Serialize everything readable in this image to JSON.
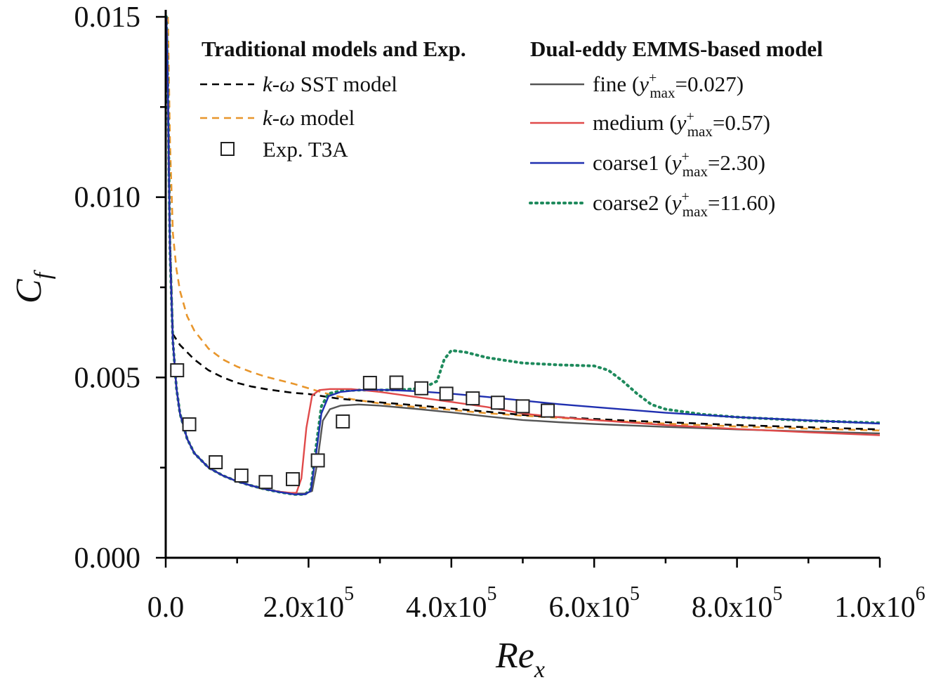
{
  "chart_data": {
    "type": "line",
    "xlabel": "Re",
    "xlabel_sub": "x",
    "ylabel": "C",
    "ylabel_sub": "f",
    "xlim": [
      0,
      1000000
    ],
    "ylim": [
      0,
      0.015
    ],
    "x_ticks": [
      0,
      200000,
      400000,
      600000,
      800000,
      1000000
    ],
    "x_tick_labels": [
      {
        "base": "0.0",
        "exp": ""
      },
      {
        "base": "2.0x10",
        "exp": "5"
      },
      {
        "base": "4.0x10",
        "exp": "5"
      },
      {
        "base": "6.0x10",
        "exp": "5"
      },
      {
        "base": "8.0x10",
        "exp": "5"
      },
      {
        "base": "1.0x10",
        "exp": "6"
      }
    ],
    "y_ticks": [
      0,
      0.005,
      0.01,
      0.015
    ],
    "y_tick_labels": [
      "0.000",
      "0.005",
      "0.010",
      "0.015"
    ],
    "grid": false,
    "legend_groups": [
      {
        "heading": "Traditional models and Exp.",
        "placement": "top-left"
      },
      {
        "heading": "Dual-eddy EMMS-based model",
        "placement": "top-right"
      }
    ],
    "series": [
      {
        "key": "sst",
        "group": 0,
        "color": "#000000",
        "style": "dashed",
        "legend": {
          "italic": "k-ω",
          "rest": " SST  model"
        },
        "x": [
          2000,
          5000,
          10000,
          20000,
          40000,
          60000,
          80000,
          100000,
          120000,
          140000,
          160000,
          180000,
          200000,
          220000,
          240000,
          260000,
          280000,
          300000,
          350000,
          400000,
          450000,
          500000,
          550000,
          600000,
          650000,
          700000,
          800000,
          900000,
          1000000
        ],
        "y": [
          0.0145,
          0.0095,
          0.0062,
          0.0059,
          0.0055,
          0.0052,
          0.005,
          0.00485,
          0.00475,
          0.00468,
          0.00462,
          0.00457,
          0.00454,
          0.00448,
          0.00442,
          0.00438,
          0.00434,
          0.00431,
          0.00423,
          0.00414,
          0.00405,
          0.00396,
          0.0039,
          0.00385,
          0.0038,
          0.00376,
          0.00368,
          0.00362,
          0.00356
        ]
      },
      {
        "key": "kw",
        "group": 0,
        "color": "#E8962C",
        "style": "dashed",
        "legend": {
          "italic": "k-ω",
          "rest": "  model"
        },
        "x": [
          3000,
          6000,
          10000,
          15000,
          20000,
          30000,
          40000,
          60000,
          80000,
          100000,
          120000,
          140000,
          160000,
          180000,
          200000,
          220000,
          240000,
          260000,
          280000,
          300000,
          350000,
          400000,
          450000,
          500000,
          550000,
          600000,
          700000,
          800000,
          900000,
          1000000
        ],
        "y": [
          0.015,
          0.0115,
          0.009,
          0.008,
          0.0074,
          0.0067,
          0.0063,
          0.0058,
          0.0055,
          0.0053,
          0.00515,
          0.00502,
          0.00492,
          0.00482,
          0.0047,
          0.00458,
          0.00448,
          0.0044,
          0.00434,
          0.00428,
          0.00418,
          0.0041,
          0.00401,
          0.00394,
          0.00388,
          0.00382,
          0.00372,
          0.00364,
          0.00358,
          0.00353
        ]
      },
      {
        "key": "fine",
        "group": 1,
        "color": "#555555",
        "style": "solid",
        "legend": {
          "label": "fine",
          "value": "=0.027)"
        },
        "x": [
          1000,
          3000,
          6000,
          10000,
          15000,
          20000,
          30000,
          40000,
          60000,
          80000,
          100000,
          120000,
          140000,
          160000,
          180000,
          195000,
          205000,
          212000,
          220000,
          230000,
          245000,
          270000,
          300000,
          350000,
          400000,
          450000,
          500000,
          550000,
          600000,
          700000,
          800000,
          900000,
          1000000
        ],
        "y": [
          0.015,
          0.013,
          0.0085,
          0.006,
          0.0047,
          0.004,
          0.0033,
          0.0029,
          0.0025,
          0.00228,
          0.00212,
          0.002,
          0.0019,
          0.00183,
          0.00178,
          0.00178,
          0.00185,
          0.0026,
          0.0038,
          0.00412,
          0.00422,
          0.00425,
          0.00422,
          0.00413,
          0.00403,
          0.00392,
          0.00382,
          0.00376,
          0.00371,
          0.00363,
          0.00356,
          0.0035,
          0.00345
        ]
      },
      {
        "key": "medium",
        "group": 1,
        "color": "#E04A4A",
        "style": "solid",
        "legend": {
          "label": "medium",
          "value": "=0.57)"
        },
        "x": [
          1000,
          3000,
          6000,
          10000,
          15000,
          20000,
          30000,
          40000,
          60000,
          80000,
          100000,
          120000,
          140000,
          160000,
          175000,
          183000,
          190000,
          197000,
          205000,
          215000,
          230000,
          260000,
          300000,
          350000,
          400000,
          450000,
          500000,
          550000,
          600000,
          700000,
          800000,
          900000,
          1000000
        ],
        "y": [
          0.015,
          0.013,
          0.0085,
          0.006,
          0.0047,
          0.004,
          0.0033,
          0.0029,
          0.0025,
          0.00228,
          0.00212,
          0.002,
          0.0019,
          0.00183,
          0.0018,
          0.0018,
          0.0022,
          0.0036,
          0.0045,
          0.00465,
          0.00468,
          0.00468,
          0.0046,
          0.00446,
          0.00432,
          0.00418,
          0.004,
          0.0039,
          0.00382,
          0.00368,
          0.00357,
          0.00348,
          0.0034
        ]
      },
      {
        "key": "coarse1",
        "group": 1,
        "color": "#1F2FB0",
        "style": "solid",
        "legend": {
          "label": "coarse1",
          "value": "=2.30)"
        },
        "x": [
          1000,
          3000,
          6000,
          10000,
          15000,
          20000,
          30000,
          40000,
          60000,
          80000,
          100000,
          120000,
          140000,
          160000,
          180000,
          195000,
          203000,
          210000,
          218000,
          228000,
          245000,
          270000,
          300000,
          350000,
          400000,
          450000,
          500000,
          550000,
          600000,
          700000,
          800000,
          900000,
          1000000
        ],
        "y": [
          0.015,
          0.013,
          0.0085,
          0.006,
          0.0047,
          0.004,
          0.0033,
          0.0029,
          0.0025,
          0.00228,
          0.00212,
          0.002,
          0.0019,
          0.00182,
          0.00176,
          0.00176,
          0.00185,
          0.0028,
          0.004,
          0.00448,
          0.0046,
          0.00465,
          0.00466,
          0.00462,
          0.00455,
          0.00446,
          0.00436,
          0.00426,
          0.00418,
          0.00402,
          0.0039,
          0.00381,
          0.00372
        ]
      },
      {
        "key": "coarse2",
        "group": 1,
        "color": "#1E8A5C",
        "style": "dotted",
        "legend": {
          "label": "coarse2",
          "value": "=11.60)"
        },
        "x": [
          1000,
          3000,
          6000,
          10000,
          15000,
          20000,
          30000,
          40000,
          60000,
          80000,
          100000,
          120000,
          140000,
          160000,
          180000,
          195000,
          203000,
          210000,
          218000,
          228000,
          245000,
          270000,
          300000,
          330000,
          360000,
          380000,
          390000,
          400000,
          420000,
          450000,
          500000,
          550000,
          600000,
          620000,
          640000,
          660000,
          680000,
          700000,
          750000,
          800000,
          900000,
          1000000
        ],
        "y": [
          0.015,
          0.013,
          0.0085,
          0.006,
          0.0047,
          0.004,
          0.0033,
          0.0029,
          0.0025,
          0.00228,
          0.00212,
          0.002,
          0.0019,
          0.00182,
          0.00176,
          0.00176,
          0.0019,
          0.003,
          0.0042,
          0.00455,
          0.00463,
          0.00465,
          0.00465,
          0.00466,
          0.0047,
          0.0049,
          0.0055,
          0.00575,
          0.0057,
          0.00555,
          0.0054,
          0.00535,
          0.00532,
          0.0052,
          0.0049,
          0.00455,
          0.00425,
          0.00412,
          0.00398,
          0.0039,
          0.0038,
          0.00374
        ]
      }
    ],
    "experimental": {
      "key": "exp",
      "group": 0,
      "marker": "open-square",
      "legend": {
        "label": "Exp. T3A"
      },
      "x": [
        16000,
        33000,
        70000,
        106000,
        140000,
        178000,
        213000,
        248000,
        286000,
        323000,
        358000,
        393000,
        430000,
        465000,
        500000,
        535000
      ],
      "y": [
        0.0052,
        0.0037,
        0.00265,
        0.00228,
        0.0021,
        0.00218,
        0.0027,
        0.00378,
        0.00485,
        0.00486,
        0.0047,
        0.00455,
        0.00442,
        0.0043,
        0.0042,
        0.00408
      ]
    },
    "y_plus_symbol": "y",
    "y_plus_sup": "+",
    "y_plus_sub": "max"
  }
}
